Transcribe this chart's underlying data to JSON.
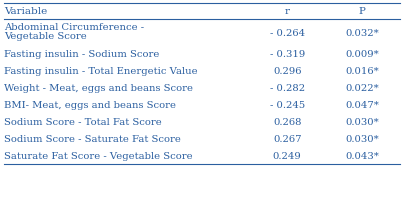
{
  "col_headers": [
    "Variable",
    "r",
    "P"
  ],
  "rows": [
    [
      "Abdominal Circumference -\nVegetable Score",
      "- 0.264",
      "0.032*"
    ],
    [
      "Fasting insulin - Sodium Score",
      "- 0.319",
      "0.009*"
    ],
    [
      "Fasting insulin - Total Energetic Value",
      "0.296",
      "0.016*"
    ],
    [
      "Weight - Meat, eggs and beans Score",
      "- 0.282",
      "0.022*"
    ],
    [
      "BMI- Meat, eggs and beans Score",
      "- 0.245",
      "0.047*"
    ],
    [
      "Sodium Score - Total Fat Score",
      "0.268",
      "0.030*"
    ],
    [
      "Sodium Score - Saturate Fat Score",
      "0.267",
      "0.030*"
    ],
    [
      "Saturate Fat Score - Vegetable Score",
      "0.249",
      "0.043*"
    ]
  ],
  "text_color": "#2B5FA0",
  "header_fontsize": 7.5,
  "body_fontsize": 7.2,
  "background_color": "#FFFFFF",
  "line_color": "#2B5FA0",
  "line_lw": 0.8
}
